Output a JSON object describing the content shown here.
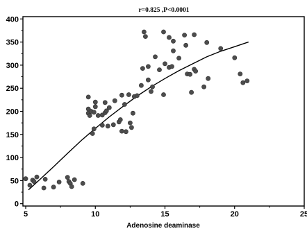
{
  "chart_data": {
    "type": "scatter",
    "title": "r=0.825 ,P<0.0001",
    "xlabel": "Adenosine deaminase",
    "ylabel": "",
    "xlim": [
      4.8,
      25
    ],
    "ylim": [
      -5,
      405
    ],
    "x_ticks": [
      5,
      10,
      15,
      20,
      25
    ],
    "y_ticks": [
      0,
      50,
      100,
      150,
      200,
      250,
      300,
      350,
      400
    ],
    "grid": false,
    "marker_color": "#4d4d4d",
    "line_color": "#000000",
    "points": [
      [
        5.0,
        54
      ],
      [
        5.3,
        40
      ],
      [
        5.5,
        51
      ],
      [
        5.6,
        48
      ],
      [
        5.8,
        58
      ],
      [
        6.3,
        34
      ],
      [
        6.4,
        53
      ],
      [
        7.0,
        36
      ],
      [
        7.4,
        47
      ],
      [
        8.0,
        57
      ],
      [
        8.1,
        48
      ],
      [
        8.2,
        44
      ],
      [
        8.3,
        37
      ],
      [
        8.5,
        52
      ],
      [
        9.1,
        44
      ],
      [
        9.5,
        231
      ],
      [
        9.5,
        205
      ],
      [
        9.5,
        196
      ],
      [
        9.6,
        191
      ],
      [
        9.7,
        200
      ],
      [
        9.8,
        152
      ],
      [
        9.9,
        162
      ],
      [
        9.9,
        198
      ],
      [
        10.0,
        210
      ],
      [
        10.0,
        220
      ],
      [
        10.2,
        191
      ],
      [
        10.5,
        192
      ],
      [
        10.5,
        170
      ],
      [
        10.7,
        219
      ],
      [
        10.7,
        197
      ],
      [
        10.8,
        201
      ],
      [
        10.9,
        168
      ],
      [
        11.0,
        208
      ],
      [
        11.3,
        171
      ],
      [
        11.4,
        223
      ],
      [
        11.7,
        177
      ],
      [
        11.8,
        182
      ],
      [
        11.9,
        157
      ],
      [
        11.9,
        235
      ],
      [
        12.1,
        215
      ],
      [
        12.2,
        156
      ],
      [
        12.4,
        236
      ],
      [
        12.5,
        175
      ],
      [
        12.6,
        165
      ],
      [
        12.7,
        196
      ],
      [
        12.8,
        232
      ],
      [
        13.0,
        234
      ],
      [
        13.3,
        256
      ],
      [
        13.4,
        293
      ],
      [
        13.5,
        372
      ],
      [
        13.6,
        362
      ],
      [
        13.8,
        268
      ],
      [
        13.8,
        297
      ],
      [
        14.0,
        243
      ],
      [
        14.1,
        253
      ],
      [
        14.3,
        318
      ],
      [
        14.6,
        290
      ],
      [
        14.9,
        236
      ],
      [
        14.9,
        372
      ],
      [
        15.0,
        303
      ],
      [
        15.3,
        295
      ],
      [
        15.3,
        360
      ],
      [
        15.5,
        297
      ],
      [
        15.6,
        352
      ],
      [
        15.6,
        331
      ],
      [
        16.0,
        315
      ],
      [
        16.4,
        365
      ],
      [
        16.5,
        343
      ],
      [
        16.6,
        281
      ],
      [
        16.8,
        280
      ],
      [
        16.9,
        241
      ],
      [
        17.1,
        366
      ],
      [
        17.1,
        291
      ],
      [
        17.2,
        287
      ],
      [
        17.8,
        253
      ],
      [
        18.0,
        349
      ],
      [
        18.1,
        271
      ],
      [
        19.0,
        336
      ],
      [
        20.0,
        316
      ],
      [
        20.4,
        281
      ],
      [
        20.6,
        262
      ],
      [
        20.9,
        266
      ]
    ],
    "fit_line": [
      [
        5.2,
        30
      ],
      [
        6,
        52
      ],
      [
        7,
        80
      ],
      [
        8,
        109
      ],
      [
        9,
        137
      ],
      [
        10,
        163
      ],
      [
        11,
        188
      ],
      [
        12,
        211
      ],
      [
        13,
        233
      ],
      [
        14,
        253
      ],
      [
        15,
        271
      ],
      [
        16,
        288
      ],
      [
        17,
        303
      ],
      [
        18,
        318
      ],
      [
        19,
        330
      ],
      [
        20,
        340
      ],
      [
        21,
        350
      ]
    ]
  }
}
